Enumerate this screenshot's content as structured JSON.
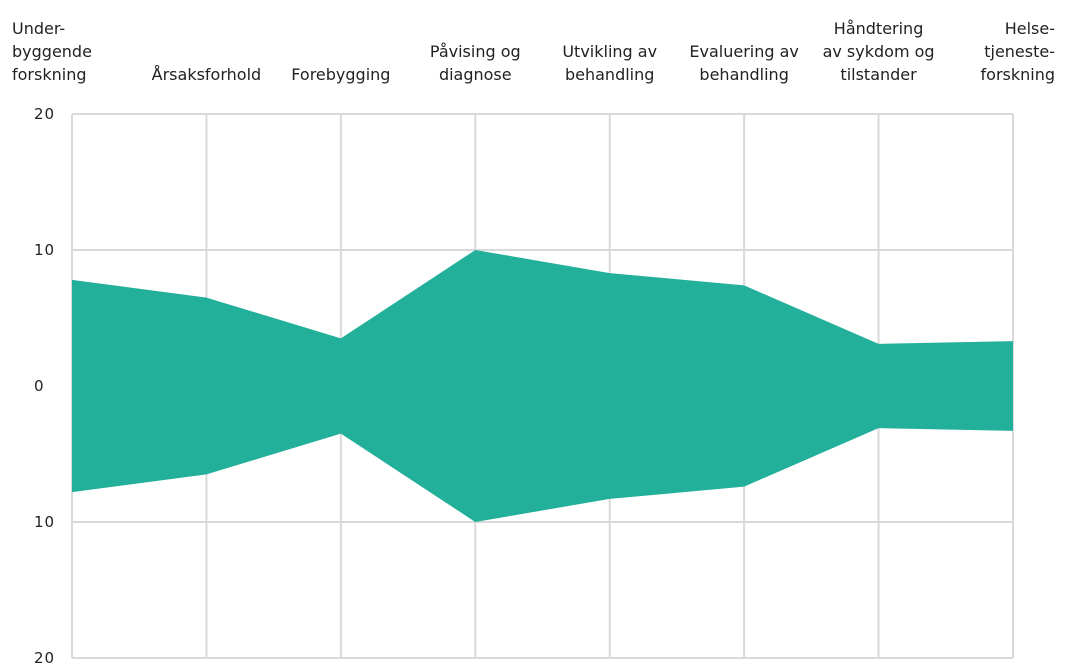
{
  "chart_data": {
    "type": "area",
    "categories": [
      [
        "Under-",
        "byggende",
        "forskning"
      ],
      [
        "Årsaksforhold"
      ],
      [
        "Forebygging"
      ],
      [
        "Påvising og",
        "diagnose"
      ],
      [
        "Utvikling av",
        "behandling"
      ],
      [
        "Evaluering av",
        "behandling"
      ],
      [
        "Håndtering",
        "av sykdom og",
        "tilstander"
      ],
      [
        "Helse-",
        "tjeneste-",
        "forskning"
      ]
    ],
    "values": [
      7.8,
      6.5,
      3.5,
      10.0,
      8.3,
      7.4,
      3.1,
      3.3
    ],
    "symmetric": true,
    "ylim": [
      -20,
      20
    ],
    "yticks": [
      20,
      10,
      0,
      -10,
      -20
    ],
    "ytick_labels": [
      "20",
      "10",
      "0",
      "10",
      "20"
    ],
    "grid": true,
    "color": "#22b09a",
    "title": "",
    "xlabel": "",
    "ylabel": ""
  }
}
